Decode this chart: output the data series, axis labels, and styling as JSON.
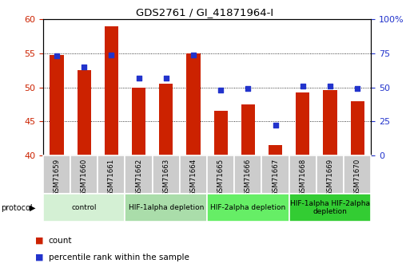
{
  "title": "GDS2761 / GI_41871964-I",
  "samples": [
    "GSM71659",
    "GSM71660",
    "GSM71661",
    "GSM71662",
    "GSM71663",
    "GSM71664",
    "GSM71665",
    "GSM71666",
    "GSM71667",
    "GSM71668",
    "GSM71669",
    "GSM71670"
  ],
  "count_values": [
    54.8,
    52.5,
    59.0,
    50.0,
    50.5,
    55.0,
    46.5,
    47.5,
    41.5,
    49.3,
    49.6,
    48.0
  ],
  "percentile_values": [
    73,
    65,
    74,
    57,
    57,
    74,
    48,
    49,
    22,
    51,
    51,
    49
  ],
  "ylim_left": [
    40,
    60
  ],
  "ylim_right": [
    0,
    100
  ],
  "yticks_left": [
    40,
    45,
    50,
    55,
    60
  ],
  "yticks_right": [
    0,
    25,
    50,
    75,
    100
  ],
  "ytick_labels_right": [
    "0",
    "25",
    "50",
    "75",
    "100%"
  ],
  "bar_color": "#cc2200",
  "dot_color": "#2233cc",
  "bar_width": 0.5,
  "bar_base": 40,
  "protocol_groups": [
    {
      "label": "control",
      "start": 0,
      "end": 2,
      "color": "#d4f0d4"
    },
    {
      "label": "HIF-1alpha depletion",
      "start": 3,
      "end": 5,
      "color": "#aaddaa"
    },
    {
      "label": "HIF-2alpha depletion",
      "start": 6,
      "end": 8,
      "color": "#66ee66"
    },
    {
      "label": "HIF-1alpha HIF-2alpha\ndepletion",
      "start": 9,
      "end": 11,
      "color": "#33cc33"
    }
  ],
  "tick_label_bg": "#cccccc",
  "left_axis_color": "#cc2200",
  "right_axis_color": "#2233cc",
  "legend_count_label": "count",
  "legend_pct_label": "percentile rank within the sample"
}
